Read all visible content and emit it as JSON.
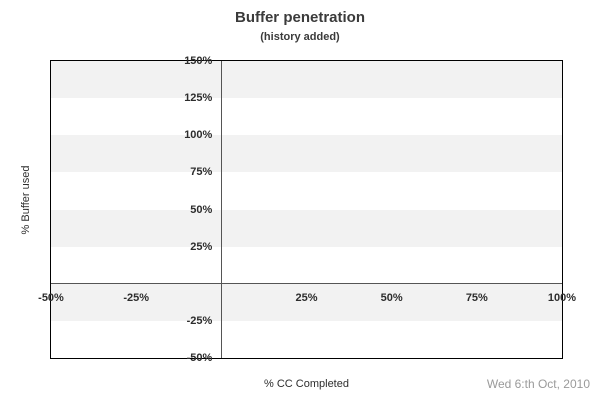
{
  "header": {
    "title": "Buffer penetration",
    "subtitle": "(history added)"
  },
  "footer": {
    "date": "Wed 6:th Oct, 2010"
  },
  "colors": {
    "band_gray": "#f2f2f2",
    "plot_border": "#000000",
    "zero_line": "#555555",
    "tick_text": "#2d2d2d",
    "title_text": "#3b3b3b",
    "date_text": "#9a9a9a",
    "background": "#ffffff"
  },
  "chart_data": {
    "type": "scatter",
    "title": "Buffer penetration",
    "subtitle": "(history added)",
    "xlabel": "% CC Completed",
    "ylabel": "% Buffer used",
    "xlim": [
      -50,
      100
    ],
    "ylim": [
      -50,
      150
    ],
    "x_ticks": [
      {
        "label": "-50%",
        "value": -50
      },
      {
        "label": "-25%",
        "value": -25
      },
      {
        "label": "25%",
        "value": 25
      },
      {
        "label": "50%",
        "value": 50
      },
      {
        "label": "75%",
        "value": 75
      },
      {
        "label": "100%",
        "value": 100
      }
    ],
    "y_ticks": [
      {
        "label": "150%",
        "value": 150
      },
      {
        "label": "125%",
        "value": 125
      },
      {
        "label": "100%",
        "value": 100
      },
      {
        "label": "75%",
        "value": 75
      },
      {
        "label": "50%",
        "value": 50
      },
      {
        "label": "25%",
        "value": 25
      },
      {
        "label": "-25%",
        "value": -25
      },
      {
        "label": "-50%",
        "value": -50
      }
    ],
    "shaded_bands": [
      [
        125,
        150
      ],
      [
        75,
        100
      ],
      [
        25,
        50
      ],
      [
        -25,
        0
      ]
    ],
    "zero_lines": {
      "x": 0,
      "y": 0
    },
    "grid": "horizontal-bands",
    "legend": "none",
    "series": []
  }
}
